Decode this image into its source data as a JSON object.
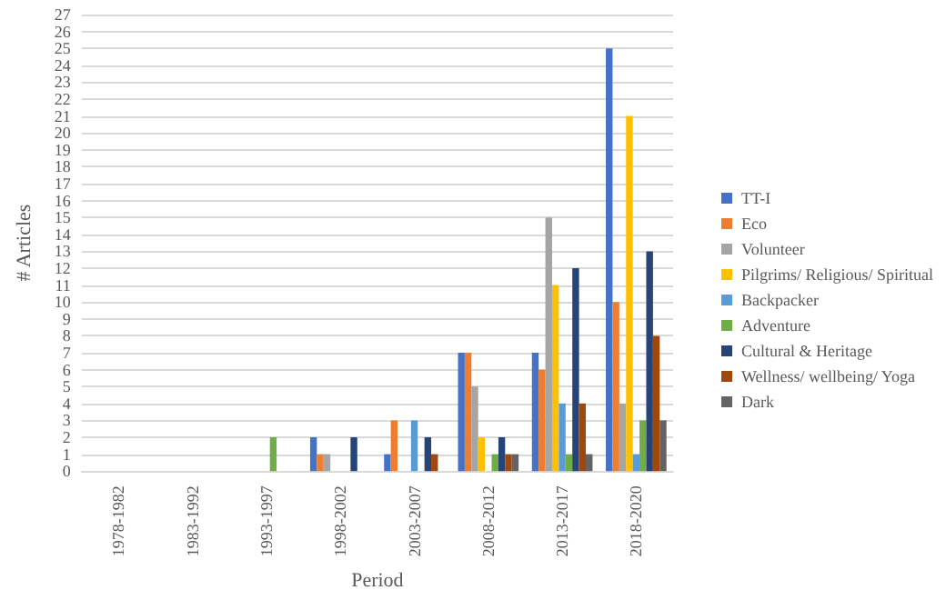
{
  "chart_data": {
    "type": "bar",
    "xlabel": "Period",
    "ylabel": "# Articles",
    "categories": [
      "1978-1982",
      "1983-1992",
      "1993-1997",
      "1998-2002",
      "2003-2007",
      "2008-2012",
      "2013-2017",
      "2018-2020"
    ],
    "series": [
      {
        "name": "TT-I",
        "color": "#4472c4",
        "values": [
          0,
          0,
          0,
          2,
          1,
          7,
          7,
          25
        ]
      },
      {
        "name": "Eco",
        "color": "#ed7d31",
        "values": [
          0,
          0,
          0,
          1,
          3,
          7,
          6,
          10
        ]
      },
      {
        "name": "Volunteer",
        "color": "#a5a5a5",
        "values": [
          0,
          0,
          0,
          1,
          0,
          5,
          15,
          4
        ]
      },
      {
        "name": "Pilgrims/ Religious/ Spiritual",
        "color": "#ffc000",
        "values": [
          0,
          0,
          0,
          0,
          0,
          2,
          11,
          21
        ]
      },
      {
        "name": "Backpacker",
        "color": "#5b9bd5",
        "values": [
          0,
          0,
          0,
          0,
          3,
          0,
          4,
          1
        ]
      },
      {
        "name": "Adventure",
        "color": "#70ad47",
        "values": [
          0,
          0,
          2,
          0,
          0,
          1,
          1,
          3
        ]
      },
      {
        "name": "Cultural & Heritage",
        "color": "#264478",
        "values": [
          0,
          0,
          0,
          2,
          2,
          2,
          12,
          13
        ]
      },
      {
        "name": "Wellness/ wellbeing/ Yoga",
        "color": "#9e480e",
        "values": [
          0,
          0,
          0,
          0,
          1,
          1,
          4,
          8
        ]
      },
      {
        "name": "Dark",
        "color": "#636363",
        "values": [
          0,
          0,
          0,
          0,
          0,
          1,
          1,
          3
        ]
      }
    ],
    "ylim": [
      0,
      27
    ],
    "yticks": [
      0,
      1,
      2,
      3,
      4,
      5,
      6,
      7,
      8,
      9,
      10,
      11,
      12,
      13,
      14,
      15,
      16,
      17,
      18,
      19,
      20,
      21,
      22,
      23,
      24,
      25,
      26,
      27
    ],
    "grid": "y",
    "legend": "right"
  }
}
